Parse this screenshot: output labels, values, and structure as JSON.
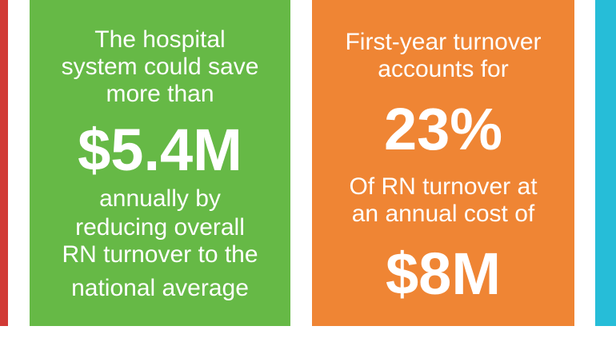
{
  "colors": {
    "left_edge": "#d13a35",
    "green_panel": "#66b946",
    "orange_panel": "#ef8534",
    "right_edge": "#26bdd8",
    "text": "#ffffff"
  },
  "green_card": {
    "lines_top": [
      "The hospital",
      "system could save",
      "more than"
    ],
    "figure": "$5.4M",
    "lines_bottom": [
      "annually by",
      "reducing overall",
      "RN turnover to the",
      "national average"
    ]
  },
  "orange_card": {
    "lines_top": [
      "First-year turnover",
      "accounts for"
    ],
    "figure": "23%",
    "lines_middle": [
      "Of RN turnover at",
      "an annual cost of"
    ],
    "figure2": "$8M"
  }
}
